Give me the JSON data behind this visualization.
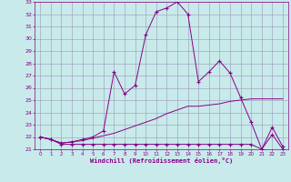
{
  "xlabel": "Windchill (Refroidissement éolien,°C)",
  "background_color": "#c8eaea",
  "grid_color": "#9999bb",
  "line_color": "#880088",
  "x_hours": [
    0,
    1,
    2,
    3,
    4,
    5,
    6,
    7,
    8,
    9,
    10,
    11,
    12,
    13,
    14,
    15,
    16,
    17,
    18,
    19,
    20,
    21,
    22,
    23
  ],
  "temp_line": [
    22.0,
    21.8,
    21.5,
    21.6,
    21.8,
    22.0,
    22.5,
    27.3,
    25.5,
    26.2,
    30.3,
    32.2,
    32.5,
    33.0,
    32.0,
    26.5,
    27.3,
    28.2,
    27.2,
    25.2,
    23.2,
    21.0,
    22.8,
    21.2
  ],
  "windchill_line": [
    22.0,
    21.8,
    21.4,
    21.4,
    21.4,
    21.4,
    21.4,
    21.4,
    21.4,
    21.4,
    21.4,
    21.4,
    21.4,
    21.4,
    21.4,
    21.4,
    21.4,
    21.4,
    21.4,
    21.4,
    21.4,
    21.0,
    22.2,
    21.0
  ],
  "apparent_line": [
    22.0,
    21.8,
    21.5,
    21.6,
    21.7,
    21.9,
    22.1,
    22.3,
    22.6,
    22.9,
    23.2,
    23.5,
    23.9,
    24.2,
    24.5,
    24.5,
    24.6,
    24.7,
    24.9,
    25.0,
    25.1,
    25.1,
    25.1,
    25.1
  ],
  "ylim": [
    21,
    33
  ],
  "xlim": [
    -0.5,
    23.5
  ],
  "yticks": [
    21,
    22,
    23,
    24,
    25,
    26,
    27,
    28,
    29,
    30,
    31,
    32,
    33
  ]
}
